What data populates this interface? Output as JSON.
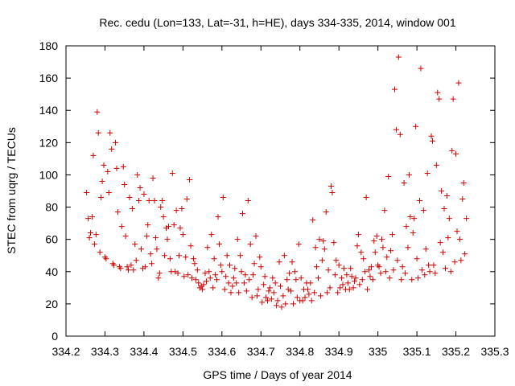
{
  "chart_data": {
    "type": "scatter",
    "title": "Rec. cedu (Lon=133, Lat=-31, h=HE), days 334-335, 2014, window 001",
    "xlabel": "GPS time / Days of year 2014",
    "ylabel": "STEC from uqrg / TECUs",
    "xlim": [
      334.2,
      335.3
    ],
    "ylim": [
      0,
      180
    ],
    "x_ticks": [
      334.2,
      334.3,
      334.4,
      334.5,
      334.6,
      334.7,
      334.8,
      334.9,
      335,
      335.1,
      335.2,
      335.3
    ],
    "x_tick_labels": [
      "334.2",
      "334.3",
      "334.4",
      "334.5",
      "334.6",
      "334.7",
      "334.8",
      "334.9",
      "335",
      "335.1",
      "335.2",
      "335.3"
    ],
    "y_ticks": [
      0,
      20,
      40,
      60,
      80,
      100,
      120,
      140,
      160,
      180
    ],
    "y_tick_labels": [
      "0",
      "20",
      "40",
      "60",
      "80",
      "100",
      "120",
      "140",
      "160",
      "180"
    ],
    "grid": false,
    "legend": "none",
    "marker": "plus",
    "marker_color": "#cc0000",
    "points": [
      [
        334.253,
        89
      ],
      [
        334.257,
        73
      ],
      [
        334.26,
        61
      ],
      [
        334.263,
        64
      ],
      [
        334.267,
        74
      ],
      [
        334.27,
        112
      ],
      [
        334.273,
        57
      ],
      [
        334.277,
        63
      ],
      [
        334.28,
        139
      ],
      [
        334.283,
        126
      ],
      [
        334.287,
        52
      ],
      [
        334.29,
        86
      ],
      [
        334.293,
        96
      ],
      [
        334.297,
        106
      ],
      [
        334.3,
        49
      ],
      [
        334.303,
        48
      ],
      [
        334.307,
        102
      ],
      [
        334.31,
        89
      ],
      [
        334.313,
        126
      ],
      [
        334.317,
        116
      ],
      [
        334.32,
        45
      ],
      [
        334.323,
        44
      ],
      [
        334.327,
        120
      ],
      [
        334.33,
        104
      ],
      [
        334.333,
        77
      ],
      [
        334.337,
        43
      ],
      [
        334.34,
        42
      ],
      [
        334.343,
        68
      ],
      [
        334.347,
        105
      ],
      [
        334.35,
        94
      ],
      [
        334.353,
        62
      ],
      [
        334.357,
        43
      ],
      [
        334.36,
        41
      ],
      [
        334.363,
        86
      ],
      [
        334.367,
        44
      ],
      [
        334.37,
        79
      ],
      [
        334.373,
        41
      ],
      [
        334.377,
        57
      ],
      [
        334.38,
        47
      ],
      [
        334.383,
        100
      ],
      [
        334.387,
        84
      ],
      [
        334.39,
        92
      ],
      [
        334.393,
        54
      ],
      [
        334.397,
        42
      ],
      [
        334.4,
        88
      ],
      [
        334.403,
        43
      ],
      [
        334.407,
        62
      ],
      [
        334.41,
        69
      ],
      [
        334.413,
        84
      ],
      [
        334.417,
        51
      ],
      [
        334.42,
        45
      ],
      [
        334.423,
        98
      ],
      [
        334.427,
        84
      ],
      [
        334.43,
        61
      ],
      [
        334.433,
        54
      ],
      [
        334.437,
        36
      ],
      [
        334.44,
        39
      ],
      [
        334.443,
        80
      ],
      [
        334.447,
        84
      ],
      [
        334.45,
        74
      ],
      [
        334.453,
        50
      ],
      [
        334.457,
        67
      ],
      [
        334.46,
        60
      ],
      [
        334.463,
        68
      ],
      [
        334.467,
        48
      ],
      [
        334.47,
        40
      ],
      [
        334.473,
        101
      ],
      [
        334.477,
        69
      ],
      [
        334.48,
        40
      ],
      [
        334.483,
        78
      ],
      [
        334.487,
        39
      ],
      [
        334.49,
        50
      ],
      [
        334.493,
        67
      ],
      [
        334.497,
        79
      ],
      [
        334.5,
        63
      ],
      [
        334.503,
        37
      ],
      [
        334.507,
        49
      ],
      [
        334.51,
        85
      ],
      [
        334.513,
        38
      ],
      [
        334.517,
        97
      ],
      [
        334.52,
        56
      ],
      [
        334.523,
        36
      ],
      [
        334.527,
        48
      ],
      [
        334.53,
        45
      ],
      [
        334.533,
        35
      ],
      [
        334.537,
        41
      ],
      [
        334.54,
        33
      ],
      [
        334.543,
        30
      ],
      [
        334.547,
        31
      ],
      [
        334.55,
        29
      ],
      [
        334.553,
        32
      ],
      [
        334.557,
        39
      ],
      [
        334.56,
        34
      ],
      [
        334.563,
        55
      ],
      [
        334.567,
        40
      ],
      [
        334.57,
        36
      ],
      [
        334.573,
        63
      ],
      [
        334.577,
        30
      ],
      [
        334.58,
        48
      ],
      [
        334.583,
        38
      ],
      [
        334.587,
        35
      ],
      [
        334.59,
        74
      ],
      [
        334.593,
        57
      ],
      [
        334.597,
        44
      ],
      [
        334.6,
        40
      ],
      [
        334.603,
        86
      ],
      [
        334.607,
        29
      ],
      [
        334.61,
        37
      ],
      [
        334.613,
        50
      ],
      [
        334.617,
        33
      ],
      [
        334.62,
        44
      ],
      [
        334.623,
        27
      ],
      [
        334.627,
        31
      ],
      [
        334.63,
        36
      ],
      [
        334.633,
        42
      ],
      [
        334.637,
        33
      ],
      [
        334.64,
        60
      ],
      [
        334.643,
        27
      ],
      [
        334.647,
        50
      ],
      [
        334.65,
        40
      ],
      [
        334.653,
        76
      ],
      [
        334.657,
        33
      ],
      [
        334.66,
        38
      ],
      [
        334.663,
        28
      ],
      [
        334.667,
        84
      ],
      [
        334.67,
        35
      ],
      [
        334.673,
        57
      ],
      [
        334.677,
        24
      ],
      [
        334.68,
        38
      ],
      [
        334.683,
        45
      ],
      [
        334.687,
        62
      ],
      [
        334.69,
        25
      ],
      [
        334.693,
        29
      ],
      [
        334.697,
        49
      ],
      [
        334.7,
        43
      ],
      [
        334.703,
        21
      ],
      [
        334.707,
        32
      ],
      [
        334.71,
        37
      ],
      [
        334.713,
        24
      ],
      [
        334.717,
        22
      ],
      [
        334.72,
        28
      ],
      [
        334.723,
        30
      ],
      [
        334.727,
        23
      ],
      [
        334.73,
        36
      ],
      [
        334.733,
        27
      ],
      [
        334.737,
        33
      ],
      [
        334.74,
        19
      ],
      [
        334.743,
        22
      ],
      [
        334.747,
        46
      ],
      [
        334.75,
        31
      ],
      [
        334.753,
        18
      ],
      [
        334.757,
        25
      ],
      [
        334.76,
        50
      ],
      [
        334.763,
        20
      ],
      [
        334.767,
        35
      ],
      [
        334.77,
        29
      ],
      [
        334.773,
        39
      ],
      [
        334.777,
        28
      ],
      [
        334.78,
        46
      ],
      [
        334.783,
        20
      ],
      [
        334.787,
        40
      ],
      [
        334.79,
        35
      ],
      [
        334.793,
        24
      ],
      [
        334.797,
        57
      ],
      [
        334.8,
        22
      ],
      [
        334.803,
        36
      ],
      [
        334.807,
        22
      ],
      [
        334.81,
        29
      ],
      [
        334.813,
        24
      ],
      [
        334.817,
        33
      ],
      [
        334.82,
        29
      ],
      [
        334.823,
        26
      ],
      [
        334.827,
        33
      ],
      [
        334.83,
        22
      ],
      [
        334.833,
        72
      ],
      [
        334.837,
        27
      ],
      [
        334.84,
        55
      ],
      [
        334.843,
        43
      ],
      [
        334.847,
        36
      ],
      [
        334.85,
        60
      ],
      [
        334.853,
        25
      ],
      [
        334.857,
        47
      ],
      [
        334.86,
        59
      ],
      [
        334.863,
        54
      ],
      [
        334.867,
        77
      ],
      [
        334.87,
        27
      ],
      [
        334.873,
        41
      ],
      [
        334.877,
        30
      ],
      [
        334.88,
        93
      ],
      [
        334.883,
        89
      ],
      [
        334.887,
        58
      ],
      [
        334.89,
        38
      ],
      [
        334.893,
        47
      ],
      [
        334.897,
        27
      ],
      [
        334.9,
        44
      ],
      [
        334.903,
        30
      ],
      [
        334.907,
        36
      ],
      [
        334.91,
        32
      ],
      [
        334.913,
        42
      ],
      [
        334.917,
        29
      ],
      [
        334.92,
        38
      ],
      [
        334.923,
        33
      ],
      [
        334.927,
        29
      ],
      [
        334.93,
        42
      ],
      [
        334.933,
        37
      ],
      [
        334.937,
        30
      ],
      [
        334.94,
        34
      ],
      [
        334.943,
        36
      ],
      [
        334.947,
        56
      ],
      [
        334.95,
        63
      ],
      [
        334.953,
        32
      ],
      [
        334.957,
        52
      ],
      [
        334.96,
        35
      ],
      [
        334.963,
        48
      ],
      [
        334.967,
        40
      ],
      [
        334.97,
        86
      ],
      [
        334.973,
        29
      ],
      [
        334.977,
        41
      ],
      [
        334.98,
        37
      ],
      [
        334.983,
        43
      ],
      [
        334.987,
        35
      ],
      [
        334.99,
        59
      ],
      [
        334.993,
        52
      ],
      [
        334.997,
        62
      ],
      [
        335.0,
        44
      ],
      [
        335.003,
        43
      ],
      [
        335.007,
        39
      ],
      [
        335.01,
        60
      ],
      [
        335.013,
        55
      ],
      [
        335.017,
        78
      ],
      [
        335.02,
        40
      ],
      [
        335.023,
        49
      ],
      [
        335.027,
        99
      ],
      [
        335.03,
        36
      ],
      [
        335.033,
        53
      ],
      [
        335.037,
        63
      ],
      [
        335.04,
        41
      ],
      [
        335.043,
        153
      ],
      [
        335.047,
        128
      ],
      [
        335.05,
        47
      ],
      [
        335.053,
        173
      ],
      [
        335.057,
        125
      ],
      [
        335.06,
        35
      ],
      [
        335.063,
        43
      ],
      [
        335.067,
        95
      ],
      [
        335.07,
        39
      ],
      [
        335.073,
        68
      ],
      [
        335.077,
        55
      ],
      [
        335.08,
        100
      ],
      [
        335.083,
        74
      ],
      [
        335.087,
        35
      ],
      [
        335.09,
        64
      ],
      [
        335.093,
        73
      ],
      [
        335.097,
        130
      ],
      [
        335.1,
        48
      ],
      [
        335.103,
        36
      ],
      [
        335.107,
        84
      ],
      [
        335.11,
        166
      ],
      [
        335.113,
        41
      ],
      [
        335.117,
        78
      ],
      [
        335.12,
        38
      ],
      [
        335.123,
        54
      ],
      [
        335.127,
        101
      ],
      [
        335.13,
        44
      ],
      [
        335.133,
        40
      ],
      [
        335.137,
        124
      ],
      [
        335.14,
        121
      ],
      [
        335.143,
        44
      ],
      [
        335.147,
        39
      ],
      [
        335.15,
        106
      ],
      [
        335.153,
        151
      ],
      [
        335.157,
        147
      ],
      [
        335.16,
        58
      ],
      [
        335.163,
        90
      ],
      [
        335.167,
        52
      ],
      [
        335.17,
        79
      ],
      [
        335.173,
        42
      ],
      [
        335.177,
        87
      ],
      [
        335.18,
        61
      ],
      [
        335.183,
        73
      ],
      [
        335.187,
        40
      ],
      [
        335.19,
        115
      ],
      [
        335.193,
        147
      ],
      [
        335.197,
        46
      ],
      [
        335.2,
        113
      ],
      [
        335.203,
        65
      ],
      [
        335.207,
        157
      ],
      [
        335.21,
        60
      ],
      [
        335.213,
        47
      ],
      [
        335.217,
        85
      ],
      [
        335.22,
        95
      ],
      [
        335.223,
        51
      ],
      [
        335.227,
        73
      ]
    ]
  }
}
